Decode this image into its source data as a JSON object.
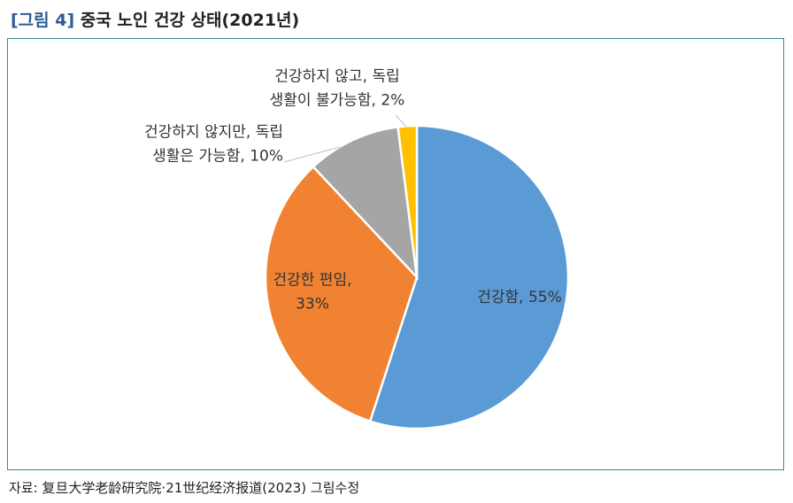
{
  "figure": {
    "label": "[그림 4]",
    "title": "중국 노인 건강 상태(2021년)"
  },
  "source": "자료:  复旦大学老龄研究院·21世纪经济报道(2023)  그림수정",
  "chart_data": {
    "type": "pie",
    "slices": [
      {
        "label_lines": [
          "건강함, 55%"
        ],
        "value": 55,
        "color": "#5b9bd5"
      },
      {
        "label_lines": [
          "건강한 편임,",
          "33%"
        ],
        "value": 33,
        "color": "#f08232"
      },
      {
        "label_lines": [
          "건강하지 않지만, 독립",
          "생활은 가능함, 10%"
        ],
        "value": 10,
        "color": "#a5a5a5"
      },
      {
        "label_lines": [
          "건강하지 않고, 독립",
          "생활이 불가능함, 2%"
        ],
        "value": 2,
        "color": "#ffc000"
      }
    ]
  }
}
